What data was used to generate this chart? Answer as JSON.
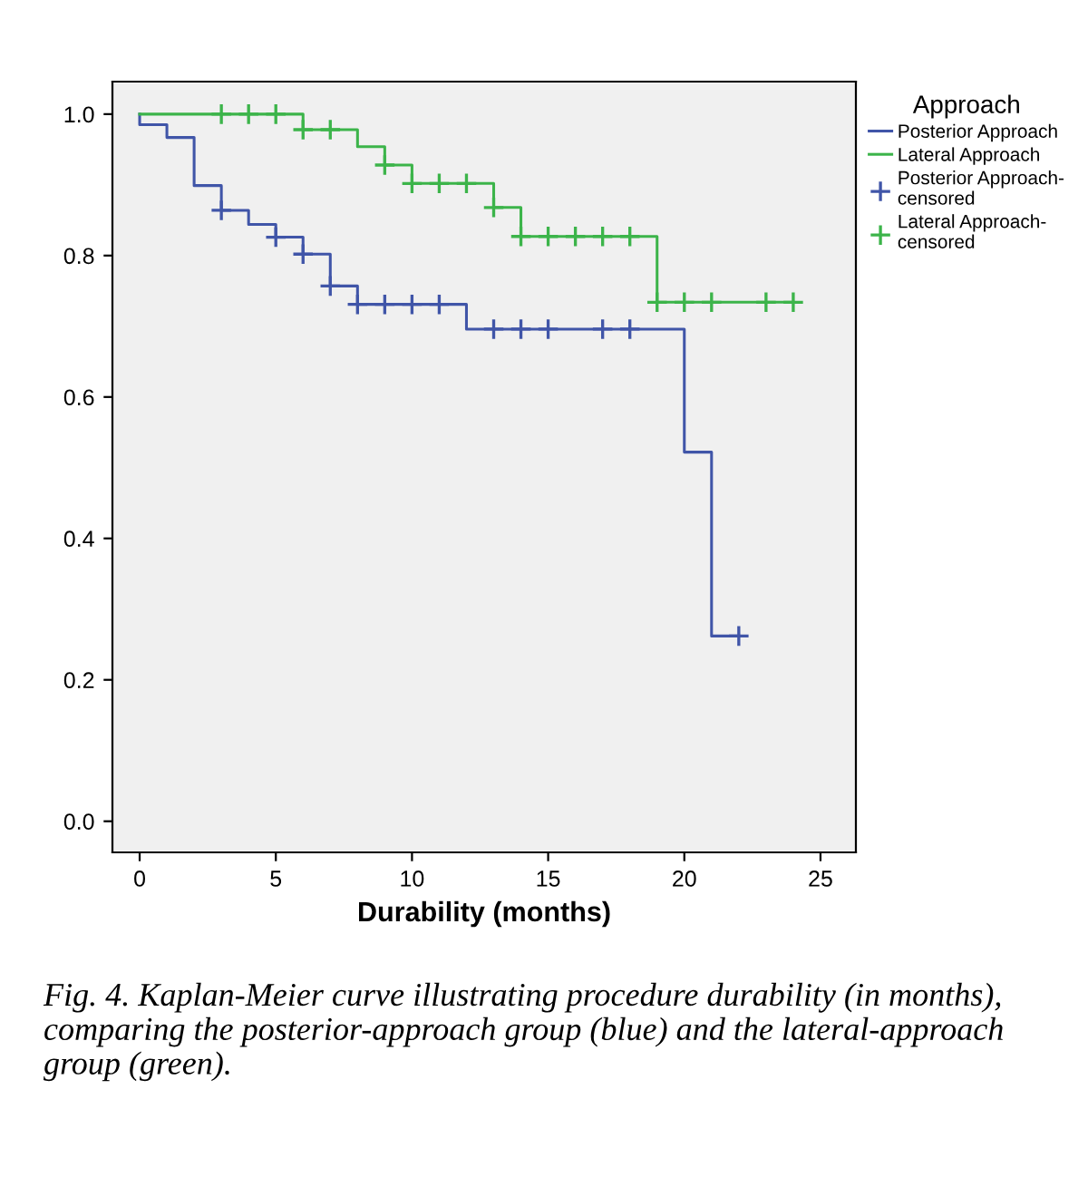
{
  "chart_data": {
    "type": "step",
    "xlabel": "Durability (months)",
    "legend_title": "Approach",
    "legend": "right",
    "grid": false,
    "xlim": [
      -1,
      26.3
    ],
    "ylim": [
      -0.044,
      1.046
    ],
    "xticks": [
      0,
      5,
      10,
      15,
      20,
      25
    ],
    "yticks": [
      {
        "value": 0,
        "label": "0.0"
      },
      {
        "value": 0.2,
        "label": "0.2"
      },
      {
        "value": 0.4,
        "label": "0.4"
      },
      {
        "value": 0.6,
        "label": "0.6"
      },
      {
        "value": 0.8,
        "label": "0.8"
      },
      {
        "value": 1,
        "label": "1.0"
      }
    ],
    "series": [
      {
        "name": "Posterior Approach",
        "color": "#4055a8",
        "x": [
          0,
          0,
          1,
          2,
          3,
          4,
          5,
          6,
          7,
          8,
          12,
          20,
          21,
          22
        ],
        "values": [
          1.0,
          0.985,
          0.967,
          0.899,
          0.864,
          0.844,
          0.826,
          0.802,
          0.757,
          0.731,
          0.696,
          0.522,
          0.262,
          0.262
        ]
      },
      {
        "name": "Lateral Approach",
        "color": "#3cb44a",
        "x": [
          0,
          6,
          8,
          9,
          10,
          13,
          14,
          19,
          24
        ],
        "values": [
          1.0,
          0.978,
          0.954,
          0.928,
          0.902,
          0.868,
          0.827,
          0.734,
          0.734
        ]
      },
      {
        "name": "Posterior Approach-censored",
        "type": "scatter",
        "marker": "cross",
        "color": "#4055a8",
        "x": [
          3,
          5,
          6,
          7,
          8,
          9,
          10,
          11,
          13,
          14,
          15,
          17,
          18,
          22
        ],
        "values": [
          0.864,
          0.826,
          0.802,
          0.757,
          0.731,
          0.731,
          0.731,
          0.731,
          0.696,
          0.696,
          0.696,
          0.696,
          0.696,
          0.262
        ]
      },
      {
        "name": "Lateral Approach-censored",
        "type": "scatter",
        "marker": "cross",
        "color": "#3cb44a",
        "x": [
          3,
          4,
          5,
          6,
          7,
          9,
          10,
          11,
          12,
          13,
          14,
          15,
          16,
          17,
          18,
          19,
          20,
          21,
          23,
          24
        ],
        "values": [
          1.0,
          1.0,
          1.0,
          0.978,
          0.978,
          0.928,
          0.902,
          0.902,
          0.902,
          0.868,
          0.827,
          0.827,
          0.827,
          0.827,
          0.827,
          0.734,
          0.734,
          0.734,
          0.734,
          0.734
        ]
      }
    ],
    "annotations": [
      "Fig. 4. Kaplan-Meier curve illustrating procedure durability (in months), comparing the posterior-approach group (blue) and the lateral-approach group (green)."
    ]
  }
}
